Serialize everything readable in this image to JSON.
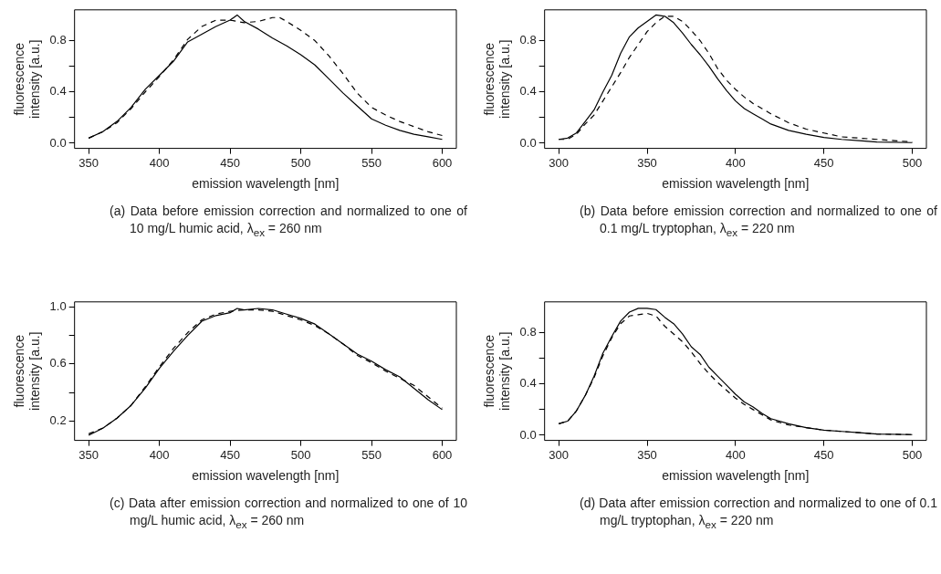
{
  "chart_data": [
    {
      "type": "line",
      "xlabel": "emission wavelength [nm]",
      "ylabel": "fluorescence\nintensity [a.u.]",
      "xlim": [
        340,
        610
      ],
      "xticks": [
        350,
        400,
        450,
        500,
        550,
        600
      ],
      "ylim": [
        -0.04,
        1.04
      ],
      "yticks": [
        {
          "value": 0,
          "label": "0.0"
        },
        {
          "value": 0.2,
          "label": null
        },
        0.4,
        {
          "value": 0.6,
          "label": null
        },
        0.8
      ],
      "grid": false,
      "legend": false,
      "series": [
        {
          "color": "#000000",
          "line_style": "solid",
          "x": [
            350,
            360,
            370,
            380,
            390,
            400,
            410,
            420,
            430,
            440,
            450,
            455,
            460,
            470,
            480,
            490,
            500,
            510,
            520,
            530,
            540,
            550,
            560,
            570,
            580,
            590,
            600
          ],
          "values": [
            0.04,
            0.09,
            0.17,
            0.28,
            0.42,
            0.53,
            0.64,
            0.79,
            0.85,
            0.91,
            0.96,
            1.0,
            0.95,
            0.89,
            0.82,
            0.76,
            0.69,
            0.61,
            0.5,
            0.39,
            0.29,
            0.19,
            0.14,
            0.1,
            0.07,
            0.05,
            0.03
          ]
        },
        {
          "color": "#000000",
          "line_style": "dashed",
          "x": [
            350,
            360,
            370,
            380,
            390,
            400,
            410,
            420,
            430,
            440,
            450,
            460,
            470,
            480,
            485,
            490,
            500,
            510,
            520,
            530,
            540,
            550,
            560,
            570,
            580,
            590,
            600
          ],
          "values": [
            0.04,
            0.09,
            0.16,
            0.27,
            0.4,
            0.52,
            0.65,
            0.81,
            0.91,
            0.96,
            0.96,
            0.94,
            0.95,
            0.98,
            0.98,
            0.95,
            0.88,
            0.8,
            0.68,
            0.54,
            0.39,
            0.28,
            0.22,
            0.17,
            0.13,
            0.09,
            0.06
          ]
        }
      ],
      "annotations": [
        "(a) Data before emission correction and normalized to one of 10 mg/L humic acid, λ$_{ex}$ = 260 nm"
      ]
    },
    {
      "type": "line",
      "xlabel": "emission wavelength [nm]",
      "ylabel": "fluorescence\nintensity [a.u.]",
      "xlim": [
        292,
        508
      ],
      "xticks": [
        300,
        350,
        400,
        450,
        500
      ],
      "ylim": [
        -0.04,
        1.04
      ],
      "yticks": [
        {
          "value": 0,
          "label": "0.0"
        },
        {
          "value": 0.2,
          "label": null
        },
        0.4,
        {
          "value": 0.6,
          "label": null
        },
        0.8
      ],
      "grid": false,
      "legend": false,
      "series": [
        {
          "color": "#000000",
          "line_style": "solid",
          "x": [
            300,
            305,
            310,
            315,
            320,
            325,
            330,
            335,
            340,
            345,
            350,
            355,
            360,
            365,
            370,
            375,
            380,
            385,
            390,
            395,
            400,
            405,
            410,
            415,
            420,
            430,
            440,
            450,
            460,
            470,
            480,
            500
          ],
          "values": [
            0.03,
            0.04,
            0.08,
            0.17,
            0.26,
            0.4,
            0.53,
            0.7,
            0.83,
            0.9,
            0.95,
            1.0,
            0.99,
            0.94,
            0.86,
            0.77,
            0.69,
            0.6,
            0.5,
            0.41,
            0.33,
            0.27,
            0.23,
            0.19,
            0.15,
            0.1,
            0.07,
            0.045,
            0.03,
            0.02,
            0.01,
            0.005
          ]
        },
        {
          "color": "#000000",
          "line_style": "dashed",
          "x": [
            300,
            305,
            310,
            315,
            320,
            325,
            330,
            335,
            340,
            345,
            350,
            355,
            360,
            365,
            370,
            375,
            380,
            385,
            390,
            395,
            400,
            405,
            410,
            415,
            420,
            430,
            440,
            450,
            460,
            470,
            480,
            490,
            500
          ],
          "values": [
            0.03,
            0.03,
            0.07,
            0.15,
            0.22,
            0.33,
            0.44,
            0.55,
            0.67,
            0.77,
            0.87,
            0.94,
            0.99,
            0.99,
            0.95,
            0.88,
            0.8,
            0.7,
            0.58,
            0.49,
            0.42,
            0.36,
            0.31,
            0.27,
            0.23,
            0.16,
            0.11,
            0.08,
            0.05,
            0.04,
            0.03,
            0.02,
            0.01
          ]
        }
      ],
      "annotations": [
        "(b) Data before emission correction and normalized to one of 0.1 mg/L tryptophan, λ$_{ex}$ = 220 nm"
      ]
    },
    {
      "type": "line",
      "xlabel": "emission wavelength [nm]",
      "ylabel": "fluorescence\nintensity [a.u.]",
      "xlim": [
        340,
        610
      ],
      "xticks": [
        350,
        400,
        450,
        500,
        550,
        600
      ],
      "ylim": [
        0.064,
        1.036
      ],
      "yticks": [
        0.2,
        {
          "value": 0.4,
          "label": null
        },
        0.6,
        {
          "value": 0.8,
          "label": null
        },
        {
          "value": 1,
          "label": "1.0"
        }
      ],
      "grid": false,
      "legend": false,
      "series": [
        {
          "color": "#000000",
          "line_style": "solid",
          "x": [
            350,
            360,
            370,
            380,
            390,
            400,
            410,
            420,
            430,
            440,
            450,
            455,
            460,
            470,
            480,
            490,
            500,
            510,
            520,
            530,
            540,
            550,
            560,
            570,
            580,
            590,
            600
          ],
          "values": [
            0.1,
            0.15,
            0.22,
            0.31,
            0.43,
            0.57,
            0.69,
            0.8,
            0.9,
            0.94,
            0.96,
            0.99,
            0.98,
            0.99,
            0.98,
            0.95,
            0.92,
            0.88,
            0.81,
            0.74,
            0.67,
            0.62,
            0.56,
            0.51,
            0.43,
            0.35,
            0.28
          ]
        },
        {
          "color": "#000000",
          "line_style": "dashed",
          "x": [
            350,
            360,
            370,
            380,
            390,
            400,
            410,
            420,
            430,
            440,
            450,
            460,
            470,
            480,
            490,
            500,
            510,
            520,
            530,
            540,
            550,
            560,
            570,
            580,
            590,
            600
          ],
          "values": [
            0.11,
            0.15,
            0.22,
            0.31,
            0.44,
            0.58,
            0.71,
            0.82,
            0.91,
            0.95,
            0.97,
            0.98,
            0.98,
            0.97,
            0.94,
            0.91,
            0.87,
            0.81,
            0.74,
            0.66,
            0.61,
            0.55,
            0.5,
            0.45,
            0.37,
            0.29
          ]
        }
      ],
      "annotations": [
        "(c) Data after emission correction and normalized to one of 10 mg/L humic acid, λ$_{ex}$ = 260 nm"
      ]
    },
    {
      "type": "line",
      "xlabel": "emission wavelength [nm]",
      "ylabel": "fluorescence\nintensity [a.u.]",
      "xlim": [
        292,
        508
      ],
      "xticks": [
        300,
        350,
        400,
        450,
        500
      ],
      "ylim": [
        -0.04,
        1.04
      ],
      "yticks": [
        {
          "value": 0,
          "label": "0.0"
        },
        {
          "value": 0.2,
          "label": null
        },
        0.4,
        {
          "value": 0.6,
          "label": null
        },
        0.8
      ],
      "grid": false,
      "legend": false,
      "series": [
        {
          "color": "#000000",
          "line_style": "solid",
          "x": [
            300,
            305,
            310,
            315,
            320,
            325,
            330,
            335,
            340,
            345,
            350,
            355,
            360,
            365,
            370,
            375,
            380,
            385,
            390,
            395,
            400,
            405,
            410,
            415,
            420,
            430,
            440,
            450,
            460,
            470,
            480,
            500
          ],
          "values": [
            0.09,
            0.11,
            0.19,
            0.31,
            0.46,
            0.64,
            0.77,
            0.89,
            0.96,
            0.99,
            0.99,
            0.98,
            0.92,
            0.87,
            0.79,
            0.69,
            0.63,
            0.53,
            0.46,
            0.39,
            0.32,
            0.26,
            0.22,
            0.17,
            0.13,
            0.09,
            0.06,
            0.04,
            0.03,
            0.02,
            0.01,
            0.005
          ]
        },
        {
          "color": "#000000",
          "line_style": "dashed",
          "x": [
            300,
            305,
            310,
            315,
            320,
            325,
            330,
            335,
            340,
            345,
            350,
            355,
            360,
            365,
            370,
            375,
            380,
            385,
            390,
            395,
            400,
            405,
            410,
            415,
            420,
            430,
            440,
            450,
            460,
            470,
            480,
            500
          ],
          "values": [
            0.09,
            0.11,
            0.19,
            0.31,
            0.45,
            0.62,
            0.76,
            0.87,
            0.93,
            0.94,
            0.95,
            0.93,
            0.85,
            0.79,
            0.73,
            0.65,
            0.56,
            0.48,
            0.41,
            0.35,
            0.29,
            0.24,
            0.2,
            0.16,
            0.12,
            0.08,
            0.06,
            0.04,
            0.03,
            0.02,
            0.01,
            0.005
          ]
        }
      ],
      "annotations": [
        "(d) Data after emission correction and normalized to one of 0.1 mg/L tryptophan, λ$_{ex}$ = 220 nm"
      ]
    }
  ]
}
